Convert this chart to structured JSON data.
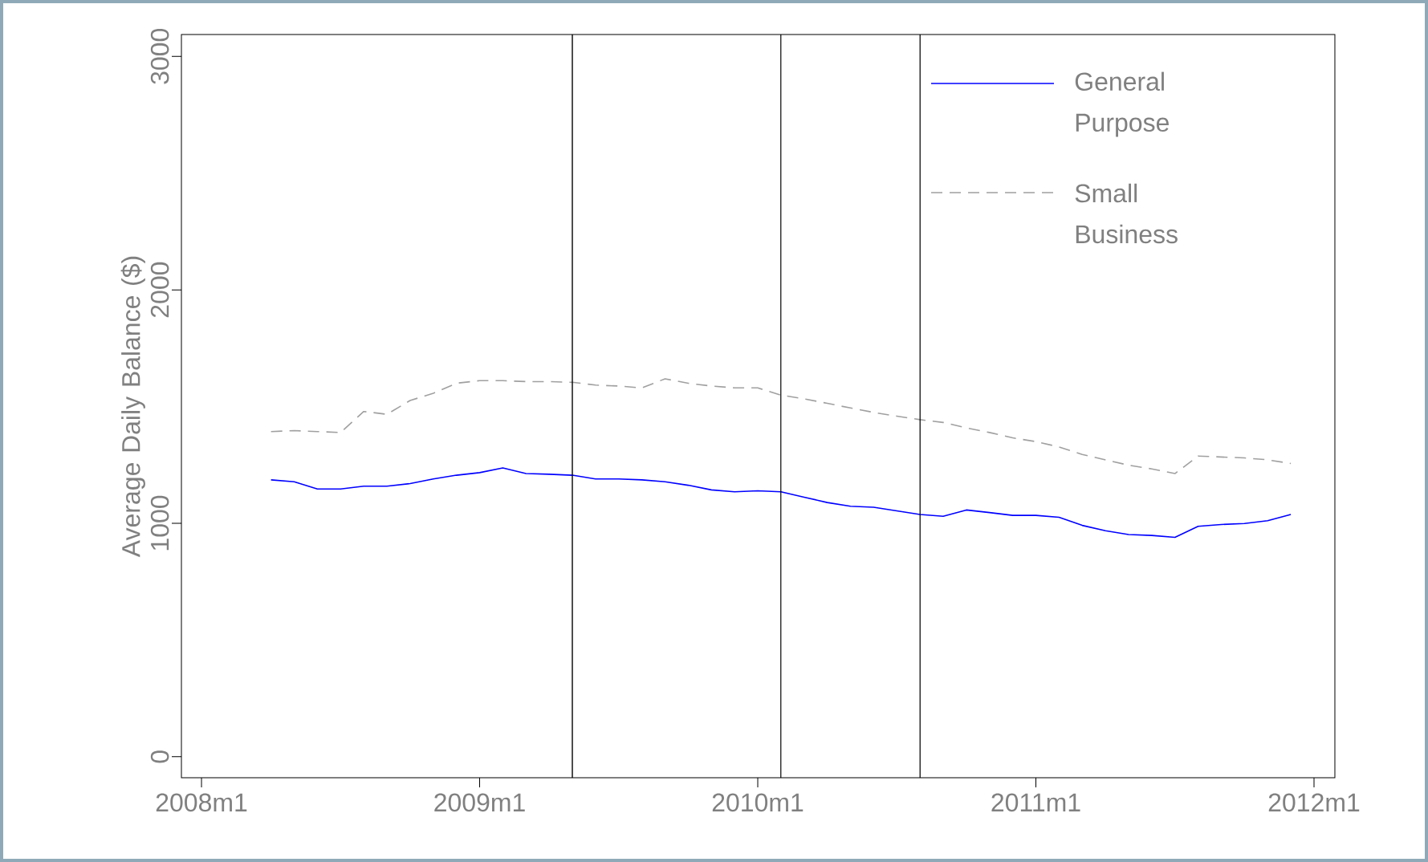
{
  "chart_data": {
    "type": "line",
    "ylabel": "Average Daily Balance ($)",
    "x": [
      "2008-04",
      "2008-05",
      "2008-06",
      "2008-07",
      "2008-08",
      "2008-09",
      "2008-10",
      "2008-11",
      "2008-12",
      "2009-01",
      "2009-02",
      "2009-03",
      "2009-04",
      "2009-05",
      "2009-06",
      "2009-07",
      "2009-08",
      "2009-09",
      "2009-10",
      "2009-11",
      "2009-12",
      "2010-01",
      "2010-02",
      "2010-03",
      "2010-04",
      "2010-05",
      "2010-06",
      "2010-07",
      "2010-08",
      "2010-09",
      "2010-10",
      "2010-11",
      "2010-12",
      "2011-01",
      "2011-02",
      "2011-03",
      "2011-04",
      "2011-05",
      "2011-06",
      "2011-07",
      "2011-08",
      "2011-09",
      "2011-10",
      "2011-11",
      "2011-12"
    ],
    "series": [
      {
        "name": "General Purpose",
        "color": "#0000ff",
        "line_style": "solid",
        "values": [
          1186,
          1178,
          1147,
          1147,
          1159,
          1159,
          1170,
          1190,
          1206,
          1217,
          1237,
          1213,
          1210,
          1206,
          1190,
          1190,
          1186,
          1178,
          1163,
          1143,
          1135,
          1139,
          1135,
          1112,
          1089,
          1073,
          1069,
          1053,
          1038,
          1030,
          1057,
          1046,
          1034,
          1034,
          1026,
          991,
          968,
          952,
          948,
          940,
          987,
          995,
          999,
          1011,
          1038
        ]
      },
      {
        "name": "Small Business",
        "color": "#a0a0a0",
        "line_style": "dashed",
        "values": [
          1393,
          1397,
          1393,
          1389,
          1479,
          1467,
          1526,
          1557,
          1600,
          1611,
          1611,
          1607,
          1607,
          1604,
          1592,
          1588,
          1580,
          1619,
          1600,
          1588,
          1580,
          1580,
          1549,
          1533,
          1514,
          1494,
          1475,
          1459,
          1444,
          1432,
          1409,
          1389,
          1366,
          1350,
          1327,
          1295,
          1272,
          1249,
          1233,
          1213,
          1288,
          1284,
          1280,
          1272,
          1256
        ]
      }
    ],
    "xlim": [
      "2007-12-05",
      "2012-01-28"
    ],
    "xticks": [
      {
        "value": "2008-01",
        "label": "2008m1"
      },
      {
        "value": "2009-01",
        "label": "2009m1"
      },
      {
        "value": "2010-01",
        "label": "2010m1"
      },
      {
        "value": "2011-01",
        "label": "2011m1"
      },
      {
        "value": "2012-01",
        "label": "2012m1"
      }
    ],
    "ylim": [
      -90,
      3094
    ],
    "yticks": [
      0,
      1000,
      2000,
      3000
    ],
    "ref_lines": [
      {
        "axis": "x",
        "value": "2009-05"
      },
      {
        "axis": "x",
        "value": "2010-02"
      },
      {
        "axis": "x",
        "value": "2010-08"
      }
    ],
    "grid": false,
    "legend": "top right",
    "marker": "none"
  }
}
